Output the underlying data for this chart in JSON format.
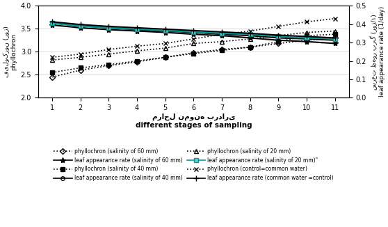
{
  "x": [
    1,
    2,
    3,
    4,
    5,
    6,
    7,
    8,
    9,
    10,
    11
  ],
  "phyllochron_60mm": [
    2.45,
    2.6,
    2.7,
    2.78,
    2.88,
    2.98,
    3.05,
    3.1,
    3.18,
    3.25,
    3.3
  ],
  "phyllochron_40mm": [
    2.55,
    2.65,
    2.72,
    2.8,
    2.88,
    2.96,
    3.03,
    3.1,
    3.22,
    3.35,
    3.38
  ],
  "phyllochron_20mm": [
    2.82,
    2.88,
    2.95,
    3.02,
    3.08,
    3.18,
    3.22,
    3.28,
    3.35,
    3.42,
    3.45
  ],
  "phyllochron_control": [
    2.88,
    2.95,
    3.05,
    3.12,
    3.18,
    3.28,
    3.38,
    3.45,
    3.55,
    3.65,
    3.72
  ],
  "lar_60mm": [
    3.58,
    3.52,
    3.48,
    3.45,
    3.42,
    3.38,
    3.35,
    3.3,
    3.25,
    3.22,
    3.18
  ],
  "lar_40mm": [
    3.62,
    3.56,
    3.52,
    3.48,
    3.45,
    3.42,
    3.38,
    3.35,
    3.3,
    3.28,
    3.25
  ],
  "lar_20mm": [
    3.62,
    3.56,
    3.52,
    3.49,
    3.46,
    3.43,
    3.4,
    3.38,
    3.33,
    3.3,
    3.28
  ],
  "lar_control": [
    3.65,
    3.59,
    3.55,
    3.52,
    3.49,
    3.46,
    3.43,
    3.4,
    3.36,
    3.33,
    3.3
  ],
  "ylim_left": [
    2.0,
    4.0
  ],
  "ylim_right": [
    0.0,
    0.5
  ],
  "yticks_left": [
    2.0,
    2.5,
    3.0,
    3.5,
    4.0
  ],
  "yticks_right": [
    0.0,
    0.1,
    0.2,
    0.3,
    0.4,
    0.5
  ],
  "ylabel_left_persian": "فیلوکرون (روز)",
  "ylabel_left_english": "phyllochron",
  "ylabel_right_persian": "سرعت ظهور برگ (روز/۱)",
  "ylabel_right_english": "leaf appearance rate (1/day)",
  "xlabel_persian": "مراحل نمونه برداری",
  "xlabel_english": "different stages of sampling",
  "color_teal": "#009999",
  "color_black": "#000000",
  "legend_items": [
    {
      "label": "phyllochron (salinity of 60 mm)",
      "ls": "dotted",
      "color": "#000000",
      "marker": "D",
      "mfc": "none",
      "ms": 4
    },
    {
      "label": "phyllochron (salinity of 40 mm)",
      "ls": "dotted",
      "color": "#000000",
      "marker": "s",
      "mfc": "#000000",
      "ms": 4
    },
    {
      "label": "phyllochron (salinity of 20 mm)",
      "ls": "dotted",
      "color": "#000000",
      "marker": "^",
      "mfc": "none",
      "ms": 4
    },
    {
      "label": "phyllochron (control=common water)",
      "ls": "dotted",
      "color": "#000000",
      "marker": "x",
      "mfc": "#000000",
      "ms": 5
    },
    {
      "label": "leaf appearance rate (salinity of 60 mm)",
      "ls": "solid",
      "color": "#000000",
      "marker": "*",
      "mfc": "#000000",
      "ms": 6
    },
    {
      "label": "leaf appearance rate (salinity of 40 mm)",
      "ls": "solid",
      "color": "#000000",
      "marker": "o",
      "mfc": "none",
      "ms": 4
    },
    {
      "label": "leaf appearance rate (salinity of 20 mm)\"",
      "ls": "solid",
      "color": "#009999",
      "marker": "s",
      "mfc": "#66CCCC",
      "ms": 4
    },
    {
      "label": "leaf appearance rate (common water =control)",
      "ls": "solid",
      "color": "#000000",
      "marker": "+",
      "mfc": "#000000",
      "ms": 6
    }
  ]
}
